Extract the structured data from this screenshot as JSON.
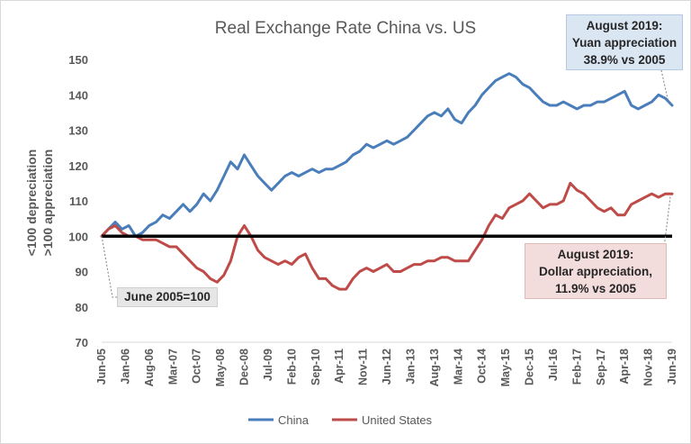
{
  "chart_data": {
    "type": "line",
    "title": "Real Exchange Rate China vs. US",
    "ylabel_line1": "<100 depreciation",
    "ylabel_line2": ">100 appreciation",
    "xlabel": "",
    "ylim": [
      70,
      150
    ],
    "yticks": [
      70,
      80,
      90,
      100,
      110,
      120,
      130,
      140,
      150
    ],
    "x_range": [
      "2005-06",
      "2019-06"
    ],
    "xtick_labels": [
      "Jun-05",
      "Jan-06",
      "Aug-06",
      "Mar-07",
      "Oct-07",
      "May-08",
      "Dec-08",
      "Jul-09",
      "Feb-10",
      "Sep-10",
      "Apr-11",
      "Nov-11",
      "Jun-12",
      "Jan-13",
      "Aug-13",
      "Mar-14",
      "Oct-14",
      "May-15",
      "Dec-15",
      "Jul-16",
      "Feb-17",
      "Sep-17",
      "Apr-18",
      "Nov-18",
      "Jun-19"
    ],
    "xtick_dates": [
      "2005-06",
      "2006-01",
      "2006-08",
      "2007-03",
      "2007-10",
      "2008-05",
      "2008-12",
      "2009-07",
      "2010-02",
      "2010-09",
      "2011-04",
      "2011-11",
      "2012-06",
      "2013-01",
      "2013-08",
      "2014-03",
      "2014-10",
      "2015-05",
      "2015-12",
      "2016-07",
      "2017-02",
      "2017-09",
      "2018-04",
      "2018-11",
      "2019-06"
    ],
    "reference_line": 100,
    "grid": "none",
    "legend_position": "bottom",
    "series": [
      {
        "name": "China",
        "color": "#4a7ebb",
        "points": [
          [
            "2005-06",
            100
          ],
          [
            "2005-08",
            102
          ],
          [
            "2005-10",
            104
          ],
          [
            "2005-12",
            102
          ],
          [
            "2006-02",
            103
          ],
          [
            "2006-04",
            100
          ],
          [
            "2006-06",
            101
          ],
          [
            "2006-08",
            103
          ],
          [
            "2006-10",
            104
          ],
          [
            "2006-12",
            106
          ],
          [
            "2007-02",
            105
          ],
          [
            "2007-04",
            107
          ],
          [
            "2007-06",
            109
          ],
          [
            "2007-08",
            107
          ],
          [
            "2007-10",
            109
          ],
          [
            "2007-12",
            112
          ],
          [
            "2008-02",
            110
          ],
          [
            "2008-04",
            113
          ],
          [
            "2008-06",
            117
          ],
          [
            "2008-08",
            121
          ],
          [
            "2008-10",
            119
          ],
          [
            "2008-12",
            123
          ],
          [
            "2009-02",
            120
          ],
          [
            "2009-04",
            117
          ],
          [
            "2009-06",
            115
          ],
          [
            "2009-08",
            113
          ],
          [
            "2009-10",
            115
          ],
          [
            "2009-12",
            117
          ],
          [
            "2010-02",
            118
          ],
          [
            "2010-04",
            117
          ],
          [
            "2010-06",
            118
          ],
          [
            "2010-08",
            119
          ],
          [
            "2010-10",
            118
          ],
          [
            "2010-12",
            119
          ],
          [
            "2011-02",
            119
          ],
          [
            "2011-04",
            120
          ],
          [
            "2011-06",
            121
          ],
          [
            "2011-08",
            123
          ],
          [
            "2011-10",
            124
          ],
          [
            "2011-12",
            126
          ],
          [
            "2012-02",
            125
          ],
          [
            "2012-04",
            126
          ],
          [
            "2012-06",
            127
          ],
          [
            "2012-08",
            126
          ],
          [
            "2012-10",
            127
          ],
          [
            "2012-12",
            128
          ],
          [
            "2013-02",
            130
          ],
          [
            "2013-04",
            132
          ],
          [
            "2013-06",
            134
          ],
          [
            "2013-08",
            135
          ],
          [
            "2013-10",
            134
          ],
          [
            "2013-12",
            136
          ],
          [
            "2014-02",
            133
          ],
          [
            "2014-04",
            132
          ],
          [
            "2014-06",
            135
          ],
          [
            "2014-08",
            137
          ],
          [
            "2014-10",
            140
          ],
          [
            "2014-12",
            142
          ],
          [
            "2015-02",
            144
          ],
          [
            "2015-04",
            145
          ],
          [
            "2015-06",
            146
          ],
          [
            "2015-08",
            145
          ],
          [
            "2015-10",
            143
          ],
          [
            "2015-12",
            142
          ],
          [
            "2016-02",
            140
          ],
          [
            "2016-04",
            138
          ],
          [
            "2016-06",
            137
          ],
          [
            "2016-08",
            137
          ],
          [
            "2016-10",
            138
          ],
          [
            "2016-12",
            137
          ],
          [
            "2017-02",
            136
          ],
          [
            "2017-04",
            137
          ],
          [
            "2017-06",
            137
          ],
          [
            "2017-08",
            138
          ],
          [
            "2017-10",
            138
          ],
          [
            "2017-12",
            139
          ],
          [
            "2018-02",
            140
          ],
          [
            "2018-04",
            141
          ],
          [
            "2018-06",
            137
          ],
          [
            "2018-08",
            136
          ],
          [
            "2018-10",
            137
          ],
          [
            "2018-12",
            138
          ],
          [
            "2019-02",
            140
          ],
          [
            "2019-04",
            139
          ],
          [
            "2019-06",
            137
          ]
        ]
      },
      {
        "name": "United States",
        "color": "#be4b48",
        "points": [
          [
            "2005-06",
            100
          ],
          [
            "2005-08",
            102
          ],
          [
            "2005-10",
            103
          ],
          [
            "2005-12",
            101
          ],
          [
            "2006-02",
            100
          ],
          [
            "2006-04",
            100
          ],
          [
            "2006-06",
            99
          ],
          [
            "2006-08",
            99
          ],
          [
            "2006-10",
            99
          ],
          [
            "2006-12",
            98
          ],
          [
            "2007-02",
            97
          ],
          [
            "2007-04",
            97
          ],
          [
            "2007-06",
            95
          ],
          [
            "2007-08",
            93
          ],
          [
            "2007-10",
            91
          ],
          [
            "2007-12",
            90
          ],
          [
            "2008-02",
            88
          ],
          [
            "2008-04",
            87
          ],
          [
            "2008-06",
            89
          ],
          [
            "2008-08",
            93
          ],
          [
            "2008-10",
            100
          ],
          [
            "2008-12",
            103
          ],
          [
            "2009-02",
            100
          ],
          [
            "2009-04",
            96
          ],
          [
            "2009-06",
            94
          ],
          [
            "2009-08",
            93
          ],
          [
            "2009-10",
            92
          ],
          [
            "2009-12",
            93
          ],
          [
            "2010-02",
            92
          ],
          [
            "2010-04",
            94
          ],
          [
            "2010-06",
            95
          ],
          [
            "2010-08",
            91
          ],
          [
            "2010-10",
            88
          ],
          [
            "2010-12",
            88
          ],
          [
            "2011-02",
            86
          ],
          [
            "2011-04",
            85
          ],
          [
            "2011-06",
            85
          ],
          [
            "2011-08",
            88
          ],
          [
            "2011-10",
            90
          ],
          [
            "2011-12",
            91
          ],
          [
            "2012-02",
            90
          ],
          [
            "2012-04",
            91
          ],
          [
            "2012-06",
            92
          ],
          [
            "2012-08",
            90
          ],
          [
            "2012-10",
            90
          ],
          [
            "2012-12",
            91
          ],
          [
            "2013-02",
            92
          ],
          [
            "2013-04",
            92
          ],
          [
            "2013-06",
            93
          ],
          [
            "2013-08",
            93
          ],
          [
            "2013-10",
            94
          ],
          [
            "2013-12",
            94
          ],
          [
            "2014-02",
            93
          ],
          [
            "2014-04",
            93
          ],
          [
            "2014-06",
            93
          ],
          [
            "2014-08",
            96
          ],
          [
            "2014-10",
            99
          ],
          [
            "2014-12",
            103
          ],
          [
            "2015-02",
            106
          ],
          [
            "2015-04",
            105
          ],
          [
            "2015-06",
            108
          ],
          [
            "2015-08",
            109
          ],
          [
            "2015-10",
            110
          ],
          [
            "2015-12",
            112
          ],
          [
            "2016-02",
            110
          ],
          [
            "2016-04",
            108
          ],
          [
            "2016-06",
            109
          ],
          [
            "2016-08",
            109
          ],
          [
            "2016-10",
            110
          ],
          [
            "2016-12",
            115
          ],
          [
            "2017-02",
            113
          ],
          [
            "2017-04",
            112
          ],
          [
            "2017-06",
            110
          ],
          [
            "2017-08",
            108
          ],
          [
            "2017-10",
            107
          ],
          [
            "2017-12",
            108
          ],
          [
            "2018-02",
            106
          ],
          [
            "2018-04",
            106
          ],
          [
            "2018-06",
            109
          ],
          [
            "2018-08",
            110
          ],
          [
            "2018-10",
            111
          ],
          [
            "2018-12",
            112
          ],
          [
            "2019-02",
            111
          ],
          [
            "2019-04",
            112
          ],
          [
            "2019-06",
            112
          ]
        ]
      }
    ],
    "annotations": {
      "china": [
        "August 2019:",
        "Yuan appreciation",
        "38.9% vs 2005"
      ],
      "us": [
        "August 2019:",
        "Dollar appreciation,",
        "11.9% vs 2005"
      ],
      "base": "June 2005=100"
    }
  }
}
